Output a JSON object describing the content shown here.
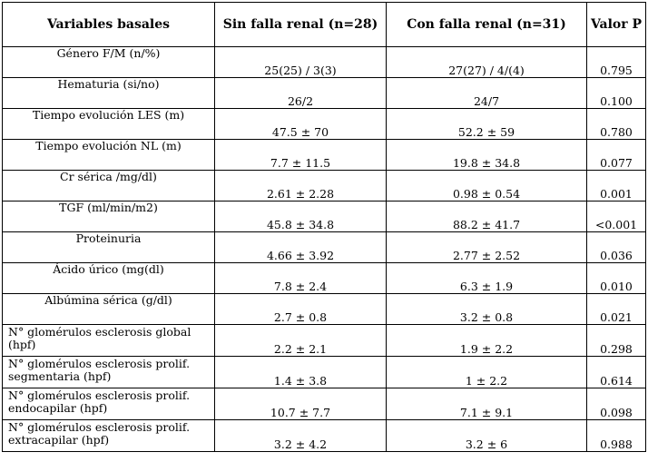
{
  "table": {
    "headers": [
      "Variables basales",
      "Sin falla renal (n=28)",
      "Con falla renal (n=31)",
      "Valor P"
    ],
    "rows": [
      [
        "Género F/M (n/%)",
        "25(25) / 3(3)",
        "27(27) / 4/(4)",
        "0.795"
      ],
      [
        "Hematuria (si/no)",
        "26/2",
        "24/7",
        "0.100"
      ],
      [
        "Tiempo evolución LES (m)",
        "47.5 ± 70",
        "52.2 ± 59",
        "0.780"
      ],
      [
        "Tiempo evolución NL (m)",
        "7.7 ± 11.5",
        "19.8 ± 34.8",
        "0.077"
      ],
      [
        "Cr sérica /mg/dl)",
        "2.61 ± 2.28",
        "0.98 ± 0.54",
        "0.001"
      ],
      [
        "TGF (ml/min/m2)",
        "45.8 ± 34.8",
        "88.2 ± 41.7",
        "<0.001"
      ],
      [
        "Proteinuria",
        "4.66 ± 3.92",
        "2.77 ± 2.52",
        "0.036"
      ],
      [
        "Ácido úrico (mg(dl)",
        "7.8 ± 2.4",
        "6.3 ± 1.9",
        "0.010"
      ],
      [
        "Albúmina sérica (g/dl)",
        "2.7 ± 0.8",
        "3.2 ± 0.8",
        "0.021"
      ],
      [
        "N° glomérulos esclerosis global (hpf)",
        "2.2 ± 2.1",
        "1.9 ± 2.2",
        "0.298"
      ],
      [
        "N° glomérulos esclerosis prolif. segmentaria (hpf)",
        "1.4 ± 3.8",
        "1 ± 2.2",
        "0.614"
      ],
      [
        "N° glomérulos esclerosis prolif. endocapilar (hpf)",
        "10.7 ± 7.7",
        "7.1 ± 9.1",
        "0.098"
      ],
      [
        "N° glomérulos esclerosis prolif. extracapilar (hpf)",
        "3.2 ± 4.2",
        "3.2 ± 6",
        "0.988"
      ]
    ]
  }
}
